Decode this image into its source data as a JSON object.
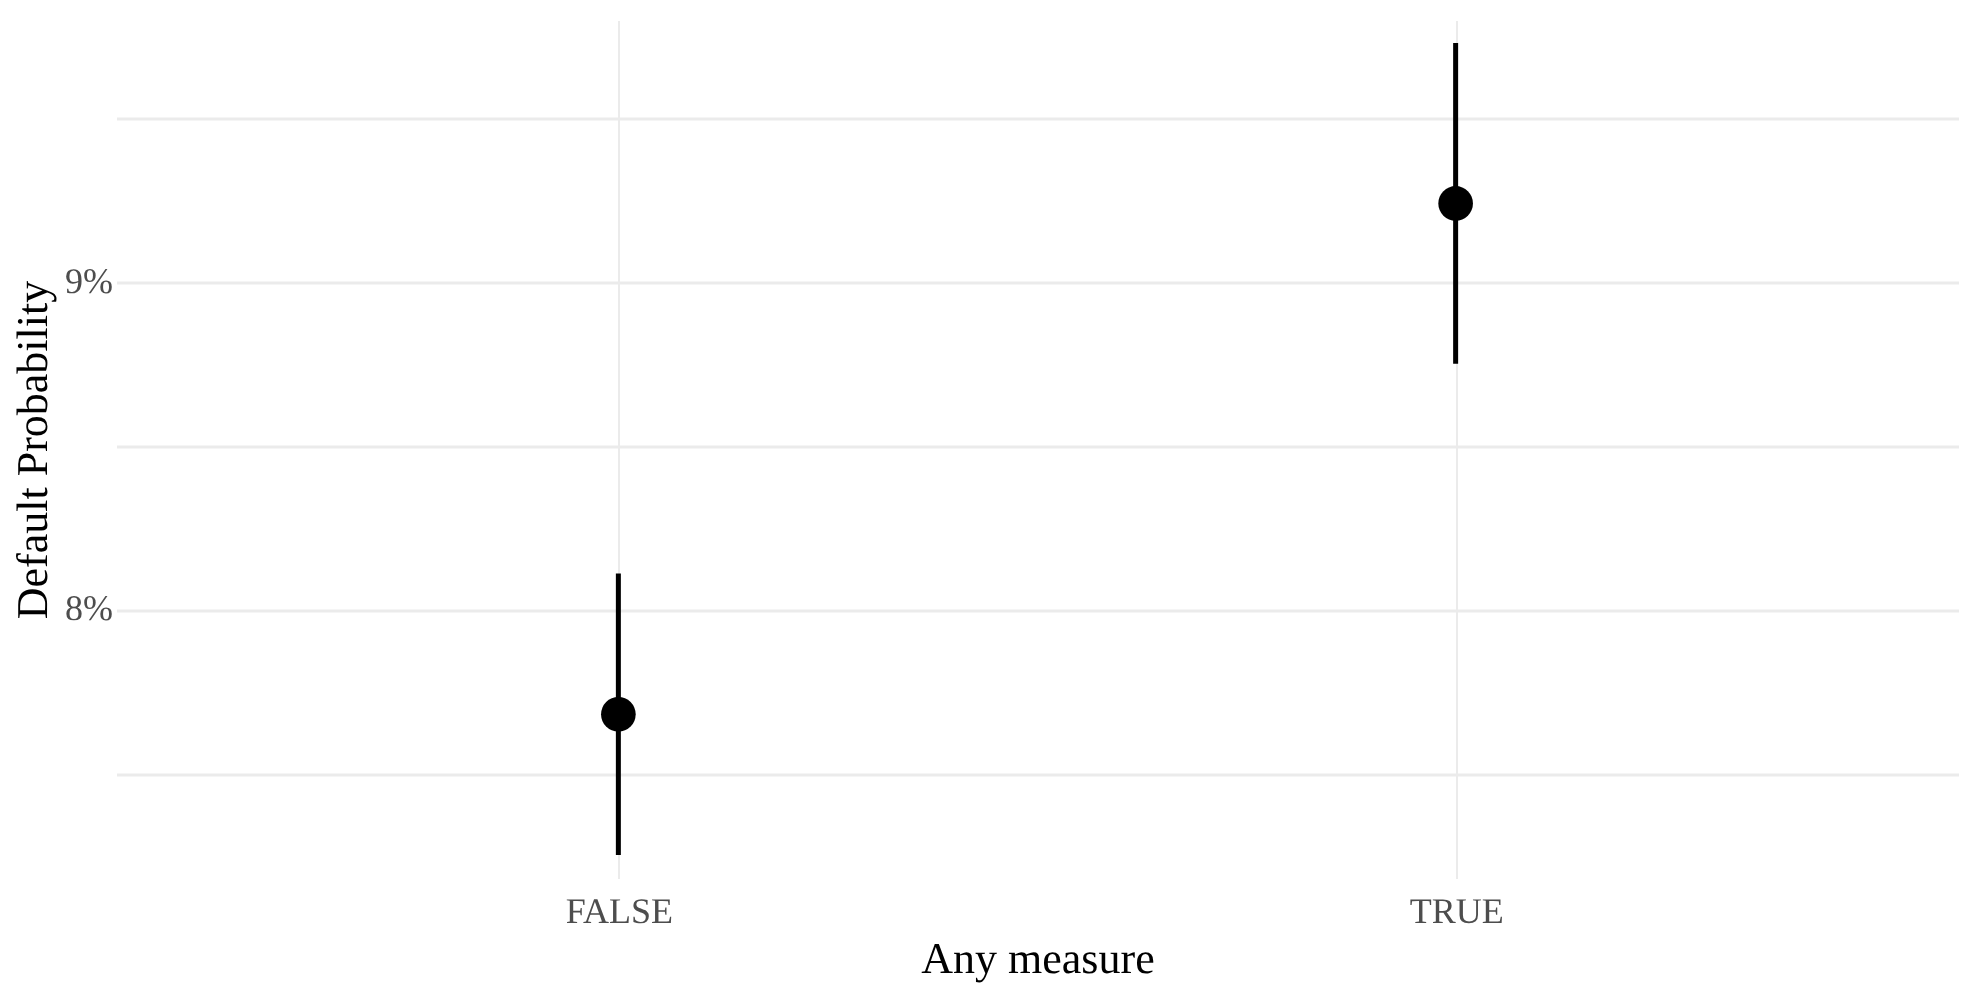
{
  "chart_data": {
    "type": "scatter",
    "xlabel": "Any measure",
    "ylabel": "Default Probability",
    "categories": [
      "FALSE",
      "TRUE"
    ],
    "values": [
      7.68,
      9.24
    ],
    "errors": [
      [
        7.25,
        8.11
      ],
      [
        8.75,
        9.73
      ]
    ],
    "color": "#000000",
    "marker": "circle",
    "ylim": [
      7.18,
      9.8
    ],
    "yticks": [
      {
        "value": 7.5,
        "label": null
      },
      {
        "value": 8,
        "label": "8%"
      },
      {
        "value": 8.5,
        "label": null
      },
      {
        "value": 9,
        "label": "9%"
      },
      {
        "value": 9.5,
        "label": null
      }
    ],
    "grid": true
  }
}
